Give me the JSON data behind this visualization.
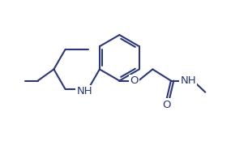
{
  "bg": "#ffffff",
  "lc": "#2c3875",
  "lw": 1.5,
  "fs": 9.5,
  "xlim": [
    0,
    10
  ],
  "ylim": [
    0,
    6.5
  ]
}
